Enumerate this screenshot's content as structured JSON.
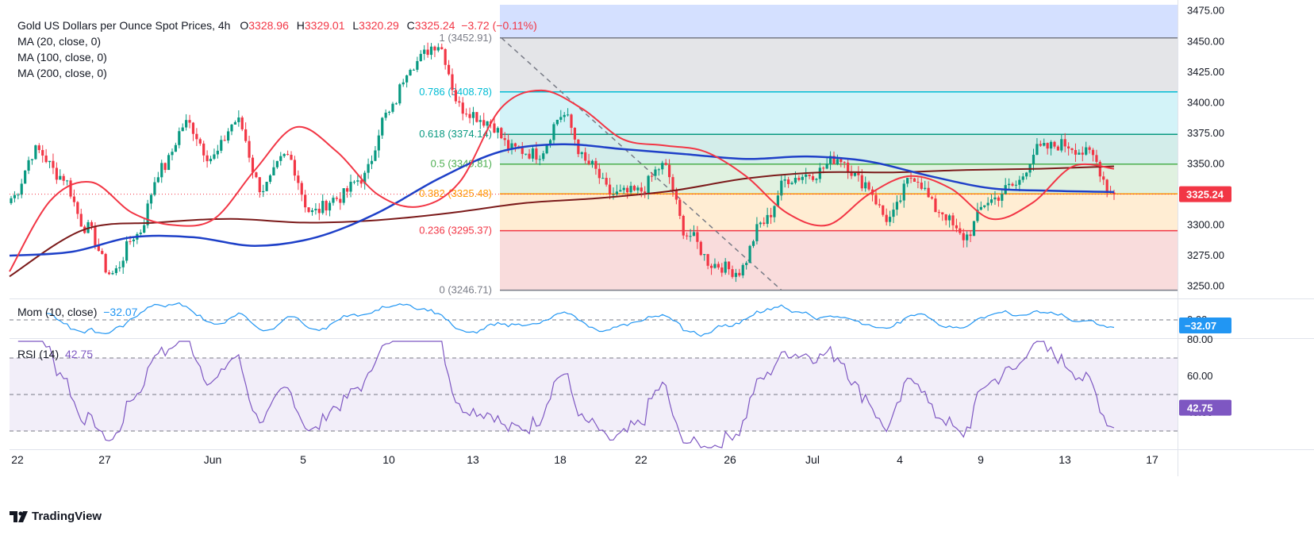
{
  "header": {
    "title": "Gold US Dollars per Ounce Spot Prices, 4h",
    "o_label": "O",
    "o": "3328.96",
    "h_label": "H",
    "h": "3329.01",
    "l_label": "L",
    "l": "3320.29",
    "c_label": "C",
    "c": "3325.24",
    "change": "−3.72 (−0.11%)"
  },
  "indicators": [
    "MA (20, close, 0)",
    "MA (100, close, 0)",
    "MA (200, close, 0)"
  ],
  "momentum": {
    "label": "Mom (10, close)",
    "value": "−32.07",
    "badge": "−32.07"
  },
  "rsi": {
    "label": "RSI (14)",
    "value": "42.75",
    "badge": "42.75"
  },
  "brand": "TradingView",
  "colors": {
    "up": "#089981",
    "down": "#f23645",
    "ma20": "#f23645",
    "ma100": "#1e40c8",
    "ma200": "#7b1a1a",
    "mom": "#2196f3",
    "rsi": "#7e57c2"
  },
  "chart_data": {
    "type": "candlestick",
    "price_axis": {
      "min": 3240,
      "max": 3480,
      "ticks": [
        "3475.00",
        "3450.00",
        "3425.00",
        "3400.00",
        "3375.00",
        "3350.00",
        "3325.00",
        "3300.00",
        "3275.00",
        "3250.00"
      ]
    },
    "x_ticks": [
      "22",
      "27",
      "Jun",
      "5",
      "10",
      "13",
      "18",
      "22",
      "26",
      "Jul",
      "4",
      "9",
      "13",
      "17"
    ],
    "last_price_badge": "3325.24",
    "fibonacci": [
      {
        "level": "1",
        "price": 3452.91,
        "label": "1 (3452.91)",
        "color": "#787b86"
      },
      {
        "level": "0.786",
        "price": 3408.78,
        "label": "0.786 (3408.78)",
        "color": "#00bcd4"
      },
      {
        "level": "0.618",
        "price": 3374.14,
        "label": "0.618 (3374.14)",
        "color": "#089981"
      },
      {
        "level": "0.5",
        "price": 3349.81,
        "label": "0.5 (3349.81)",
        "color": "#4caf50"
      },
      {
        "level": "0.382",
        "price": 3325.48,
        "label": "0.382 (3325.48)",
        "color": "#ff9800"
      },
      {
        "level": "0.236",
        "price": 3295.37,
        "label": "0.236 (3295.37)",
        "color": "#f23645"
      },
      {
        "level": "0",
        "price": 3246.71,
        "label": "0 (3246.71)",
        "color": "#787b86"
      }
    ],
    "anchors": [
      {
        "date": "May 22",
        "close": 3322
      },
      {
        "date": "May 23",
        "close": 3361
      },
      {
        "date": "May 26",
        "close": 3340
      },
      {
        "date": "May 27",
        "close": 3298
      },
      {
        "date": "May 29",
        "close": 3260
      },
      {
        "date": "May 30",
        "close": 3292
      },
      {
        "date": "Jun 1",
        "close": 3346
      },
      {
        "date": "Jun 2",
        "close": 3383
      },
      {
        "date": "Jun 3",
        "close": 3355
      },
      {
        "date": "Jun 5",
        "close": 3385
      },
      {
        "date": "Jun 6",
        "close": 3330
      },
      {
        "date": "Jun 7",
        "close": 3356
      },
      {
        "date": "Jun 9",
        "close": 3310
      },
      {
        "date": "Jun 10",
        "close": 3322
      },
      {
        "date": "Jun 11",
        "close": 3338
      },
      {
        "date": "Jun 12",
        "close": 3390
      },
      {
        "date": "Jun 13",
        "close": 3432
      },
      {
        "date": "Jun 14",
        "close": 3448
      },
      {
        "date": "Jun 16",
        "close": 3395
      },
      {
        "date": "Jun 17",
        "close": 3385
      },
      {
        "date": "Jun 19",
        "close": 3362
      },
      {
        "date": "Jun 20",
        "close": 3358
      },
      {
        "date": "Jun 22",
        "close": 3390
      },
      {
        "date": "Jun 23",
        "close": 3350
      },
      {
        "date": "Jun 24",
        "close": 3325
      },
      {
        "date": "Jun 25",
        "close": 3327
      },
      {
        "date": "Jun 26",
        "close": 3348
      },
      {
        "date": "Jun 27",
        "close": 3292
      },
      {
        "date": "Jun 28",
        "close": 3268
      },
      {
        "date": "Jun 29",
        "close": 3262
      },
      {
        "date": "Jun 30",
        "close": 3302
      },
      {
        "date": "Jul 1",
        "close": 3338
      },
      {
        "date": "Jul 2",
        "close": 3342
      },
      {
        "date": "Jul 3",
        "close": 3355
      },
      {
        "date": "Jul 4",
        "close": 3335
      },
      {
        "date": "Jul 6",
        "close": 3305
      },
      {
        "date": "Jul 7",
        "close": 3340
      },
      {
        "date": "Jul 8",
        "close": 3312
      },
      {
        "date": "Jul 9",
        "close": 3290
      },
      {
        "date": "Jul 10",
        "close": 3320
      },
      {
        "date": "Jul 11",
        "close": 3332
      },
      {
        "date": "Jul 12",
        "close": 3362
      },
      {
        "date": "Jul 13",
        "close": 3366
      },
      {
        "date": "Jul 14",
        "close": 3358
      },
      {
        "date": "Jul 15",
        "close": 3325.24
      }
    ],
    "ma20_anchors": [
      3262,
      3320,
      3335,
      3310,
      3300,
      3305,
      3345,
      3380,
      3360,
      3325,
      3315,
      3335,
      3395,
      3410,
      3395,
      3370,
      3365,
      3360,
      3340,
      3310,
      3300,
      3325,
      3340,
      3330,
      3305,
      3318,
      3348,
      3346
    ],
    "ma100_anchors": [
      3275,
      3278,
      3290,
      3290,
      3283,
      3290,
      3310,
      3338,
      3360,
      3366,
      3362,
      3358,
      3354,
      3356,
      3352,
      3340,
      3330,
      3328,
      3327
    ],
    "ma200_anchors": [
      3258,
      3296,
      3302,
      3305,
      3302,
      3304,
      3310,
      3318,
      3322,
      3328,
      3338,
      3343,
      3343,
      3345,
      3346,
      3348
    ],
    "momentum_axis": {
      "ticks": [
        "0.00"
      ]
    },
    "rsi_axis": {
      "min": 20,
      "max": 80,
      "ticks": [
        "80.00",
        "60.00",
        "40.00"
      ],
      "bands": [
        70,
        50,
        30
      ]
    }
  }
}
